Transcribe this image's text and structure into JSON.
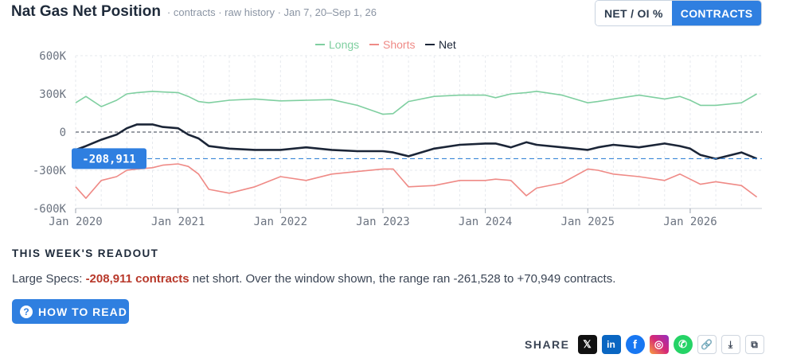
{
  "header": {
    "title": "Nat Gas Net Position",
    "subtitle": "· contracts · raw history · Jan 7, 20–Sep 1, 26"
  },
  "toggle": {
    "option_1": "NET / OI %",
    "option_2": "CONTRACTS",
    "selected": "CONTRACTS"
  },
  "colors": {
    "longs": "#7fcfa0",
    "shorts": "#ef8a86",
    "net": "#1b2537",
    "accent": "#2f7fe0",
    "highlight": "#b8392b"
  },
  "chart_data": {
    "type": "line",
    "x_unit": "year",
    "xlim": [
      2020.0,
      2026.7
    ],
    "ylim": [
      -600000,
      600000
    ],
    "y_ticks": [
      {
        "value": 600000,
        "label": "600K"
      },
      {
        "value": 300000,
        "label": "300K"
      },
      {
        "value": 0,
        "label": "0"
      },
      {
        "value": -300000,
        "label": "-300K"
      },
      {
        "value": -600000,
        "label": "-600K"
      }
    ],
    "x_ticks": [
      {
        "value": 2020.0,
        "label": "Jan 2020"
      },
      {
        "value": 2021.0,
        "label": "Jan 2021"
      },
      {
        "value": 2022.0,
        "label": "Jan 2022"
      },
      {
        "value": 2023.0,
        "label": "Jan 2023"
      },
      {
        "value": 2024.0,
        "label": "Jan 2024"
      },
      {
        "value": 2025.0,
        "label": "Jan 2025"
      },
      {
        "value": 2026.0,
        "label": "Jan 2026"
      }
    ],
    "legend": [
      "Longs",
      "Shorts",
      "Net"
    ],
    "legend_position": "top-center",
    "grid": true,
    "zero_line": true,
    "current_marker": {
      "value": -208911,
      "label": "-208,911"
    },
    "x": [
      2020.0,
      2020.1,
      2020.25,
      2020.4,
      2020.5,
      2020.6,
      2020.75,
      2020.85,
      2021.0,
      2021.1,
      2021.2,
      2021.3,
      2021.5,
      2021.75,
      2022.0,
      2022.25,
      2022.5,
      2022.75,
      2023.0,
      2023.1,
      2023.25,
      2023.5,
      2023.75,
      2024.0,
      2024.1,
      2024.25,
      2024.4,
      2024.5,
      2024.75,
      2025.0,
      2025.1,
      2025.25,
      2025.5,
      2025.75,
      2025.9,
      2026.0,
      2026.1,
      2026.25,
      2026.5,
      2026.65
    ],
    "series": [
      {
        "name": "Longs",
        "values": [
          230000,
          280000,
          200000,
          250000,
          300000,
          310000,
          320000,
          315000,
          310000,
          280000,
          240000,
          230000,
          250000,
          260000,
          245000,
          250000,
          255000,
          210000,
          140000,
          145000,
          240000,
          280000,
          290000,
          290000,
          270000,
          300000,
          310000,
          320000,
          290000,
          230000,
          240000,
          260000,
          290000,
          260000,
          280000,
          250000,
          210000,
          210000,
          230000,
          300000
        ]
      },
      {
        "name": "Shorts",
        "values": [
          -430000,
          -520000,
          -380000,
          -350000,
          -300000,
          -290000,
          -280000,
          -260000,
          -250000,
          -270000,
          -330000,
          -450000,
          -480000,
          -430000,
          -350000,
          -380000,
          -330000,
          -310000,
          -290000,
          -290000,
          -430000,
          -420000,
          -380000,
          -380000,
          -370000,
          -380000,
          -500000,
          -440000,
          -400000,
          -290000,
          -300000,
          -330000,
          -350000,
          -380000,
          -330000,
          -370000,
          -410000,
          -390000,
          -420000,
          -510000
        ]
      },
      {
        "name": "Net",
        "values": [
          -140000,
          -110000,
          -60000,
          -20000,
          30000,
          60000,
          60000,
          40000,
          30000,
          -20000,
          -50000,
          -110000,
          -130000,
          -140000,
          -140000,
          -120000,
          -140000,
          -150000,
          -150000,
          -160000,
          -190000,
          -130000,
          -100000,
          -90000,
          -90000,
          -120000,
          -80000,
          -100000,
          -120000,
          -140000,
          -120000,
          -100000,
          -120000,
          -90000,
          -110000,
          -130000,
          -180000,
          -210000,
          -160000,
          -208911
        ]
      }
    ]
  },
  "readout": {
    "heading": "THIS WEEK'S READOUT",
    "prefix": "Large Specs: ",
    "highlight": "-208,911 contracts",
    "suffix": " net short. Over the window shown, the range ran -261,528 to +70,949 contracts."
  },
  "how_to_read_label": "HOW TO READ",
  "how_to_read_icon": "?",
  "share": {
    "label": "SHARE",
    "buttons": [
      {
        "icon": "x-icon",
        "glyph": "𝕏"
      },
      {
        "icon": "linkedin-icon",
        "glyph": "in"
      },
      {
        "icon": "facebook-icon",
        "glyph": "f"
      },
      {
        "icon": "instagram-icon",
        "glyph": "◎"
      },
      {
        "icon": "whatsapp-icon",
        "glyph": "✆"
      },
      {
        "icon": "link-icon",
        "glyph": "🔗"
      },
      {
        "icon": "download-icon",
        "glyph": "⤓"
      },
      {
        "icon": "copy-icon",
        "glyph": "⧉"
      }
    ]
  }
}
